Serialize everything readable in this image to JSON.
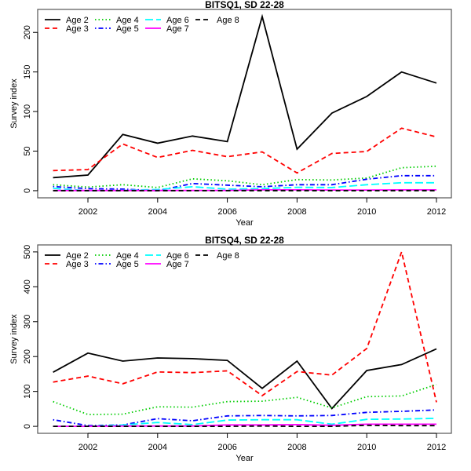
{
  "chart_data": [
    {
      "type": "line",
      "title": "BITSQ1, SD 22-28",
      "xlabel": "Year",
      "ylabel": "Survey index",
      "x": [
        2001,
        2002,
        2003,
        2004,
        2005,
        2006,
        2007,
        2008,
        2009,
        2010,
        2011,
        2012
      ],
      "xticks": [
        2002,
        2004,
        2006,
        2008,
        2010,
        2012
      ],
      "yticks": [
        0,
        50,
        100,
        150,
        200
      ],
      "ylim": [
        -9,
        229
      ],
      "legend_position": "top-left",
      "series": [
        {
          "name": "Age 2",
          "color": "#000000",
          "dash": "solid",
          "values": [
            16.5,
            19.8,
            71,
            60,
            69,
            62,
            220,
            52.5,
            98,
            119,
            150,
            136
          ]
        },
        {
          "name": "Age 3",
          "color": "#ff0000",
          "dash": "dashed",
          "values": [
            25.4,
            26.7,
            59,
            42,
            51,
            43,
            49,
            22.4,
            47,
            49.5,
            79,
            68
          ]
        },
        {
          "name": "Age 4",
          "color": "#00cd00",
          "dash": "dotted",
          "values": [
            7.6,
            4.6,
            7.6,
            4,
            15,
            12.5,
            7.6,
            14,
            13.5,
            16,
            29,
            31
          ]
        },
        {
          "name": "Age 5",
          "color": "#0000ff",
          "dash": "dotdash",
          "values": [
            5.3,
            2.6,
            2,
            0,
            9,
            7,
            5,
            7.6,
            7.6,
            14.5,
            19,
            19
          ]
        },
        {
          "name": "Age 6",
          "color": "#00ffff",
          "dash": "longdash",
          "values": [
            3,
            0,
            0.5,
            1.5,
            5,
            2,
            2.6,
            4.3,
            4,
            7.6,
            10,
            10
          ]
        },
        {
          "name": "Age 7",
          "color": "#ff00ff",
          "dash": "solid",
          "values": [
            0.2,
            0.2,
            0.2,
            0.2,
            0.3,
            0.3,
            1,
            1,
            0.8,
            0.8,
            1,
            1
          ]
        },
        {
          "name": "Age 8",
          "color": "#000000",
          "dash": "dashed",
          "values": [
            0,
            0,
            0,
            0,
            0,
            0,
            0.1,
            0.1,
            0,
            0,
            0.1,
            0.1
          ]
        }
      ]
    },
    {
      "type": "line",
      "title": "BITSQ4, SD 22-28",
      "xlabel": "Year",
      "ylabel": "Survey index",
      "x": [
        2001,
        2002,
        2003,
        2004,
        2005,
        2006,
        2007,
        2008,
        2009,
        2010,
        2011,
        2012
      ],
      "xticks": [
        2002,
        2004,
        2006,
        2008,
        2010,
        2012
      ],
      "yticks": [
        0,
        100,
        200,
        300,
        400,
        500
      ],
      "ylim": [
        -20,
        520
      ],
      "legend_position": "top-left",
      "series": [
        {
          "name": "Age 2",
          "color": "#000000",
          "dash": "solid",
          "values": [
            155,
            210,
            187,
            196,
            194,
            189,
            109,
            187,
            51,
            160,
            177,
            222
          ]
        },
        {
          "name": "Age 3",
          "color": "#ff0000",
          "dash": "dashed",
          "values": [
            127,
            144,
            122,
            156,
            154,
            159,
            88,
            157,
            147,
            223,
            500,
            69
          ]
        },
        {
          "name": "Age 4",
          "color": "#00cd00",
          "dash": "dotted",
          "values": [
            71,
            34,
            35,
            56,
            55,
            71,
            72,
            83,
            53,
            85,
            87,
            120
          ]
        },
        {
          "name": "Age 5",
          "color": "#0000ff",
          "dash": "dotdash",
          "values": [
            19,
            2,
            4,
            22,
            16,
            30,
            31,
            30,
            31,
            40,
            43,
            47
          ]
        },
        {
          "name": "Age 6",
          "color": "#00ffff",
          "dash": "longdash",
          "values": [
            0,
            0,
            4,
            11,
            5,
            18,
            19,
            19,
            6,
            20,
            21,
            23
          ]
        },
        {
          "name": "Age 7",
          "color": "#ff00ff",
          "dash": "solid",
          "values": [
            0,
            0,
            1,
            1,
            1,
            4,
            4,
            5,
            3,
            6,
            6,
            6
          ]
        },
        {
          "name": "Age 8",
          "color": "#000000",
          "dash": "dashed",
          "values": [
            0,
            0,
            0,
            0,
            0,
            0,
            1,
            0,
            0,
            3,
            2,
            2
          ]
        }
      ]
    }
  ]
}
